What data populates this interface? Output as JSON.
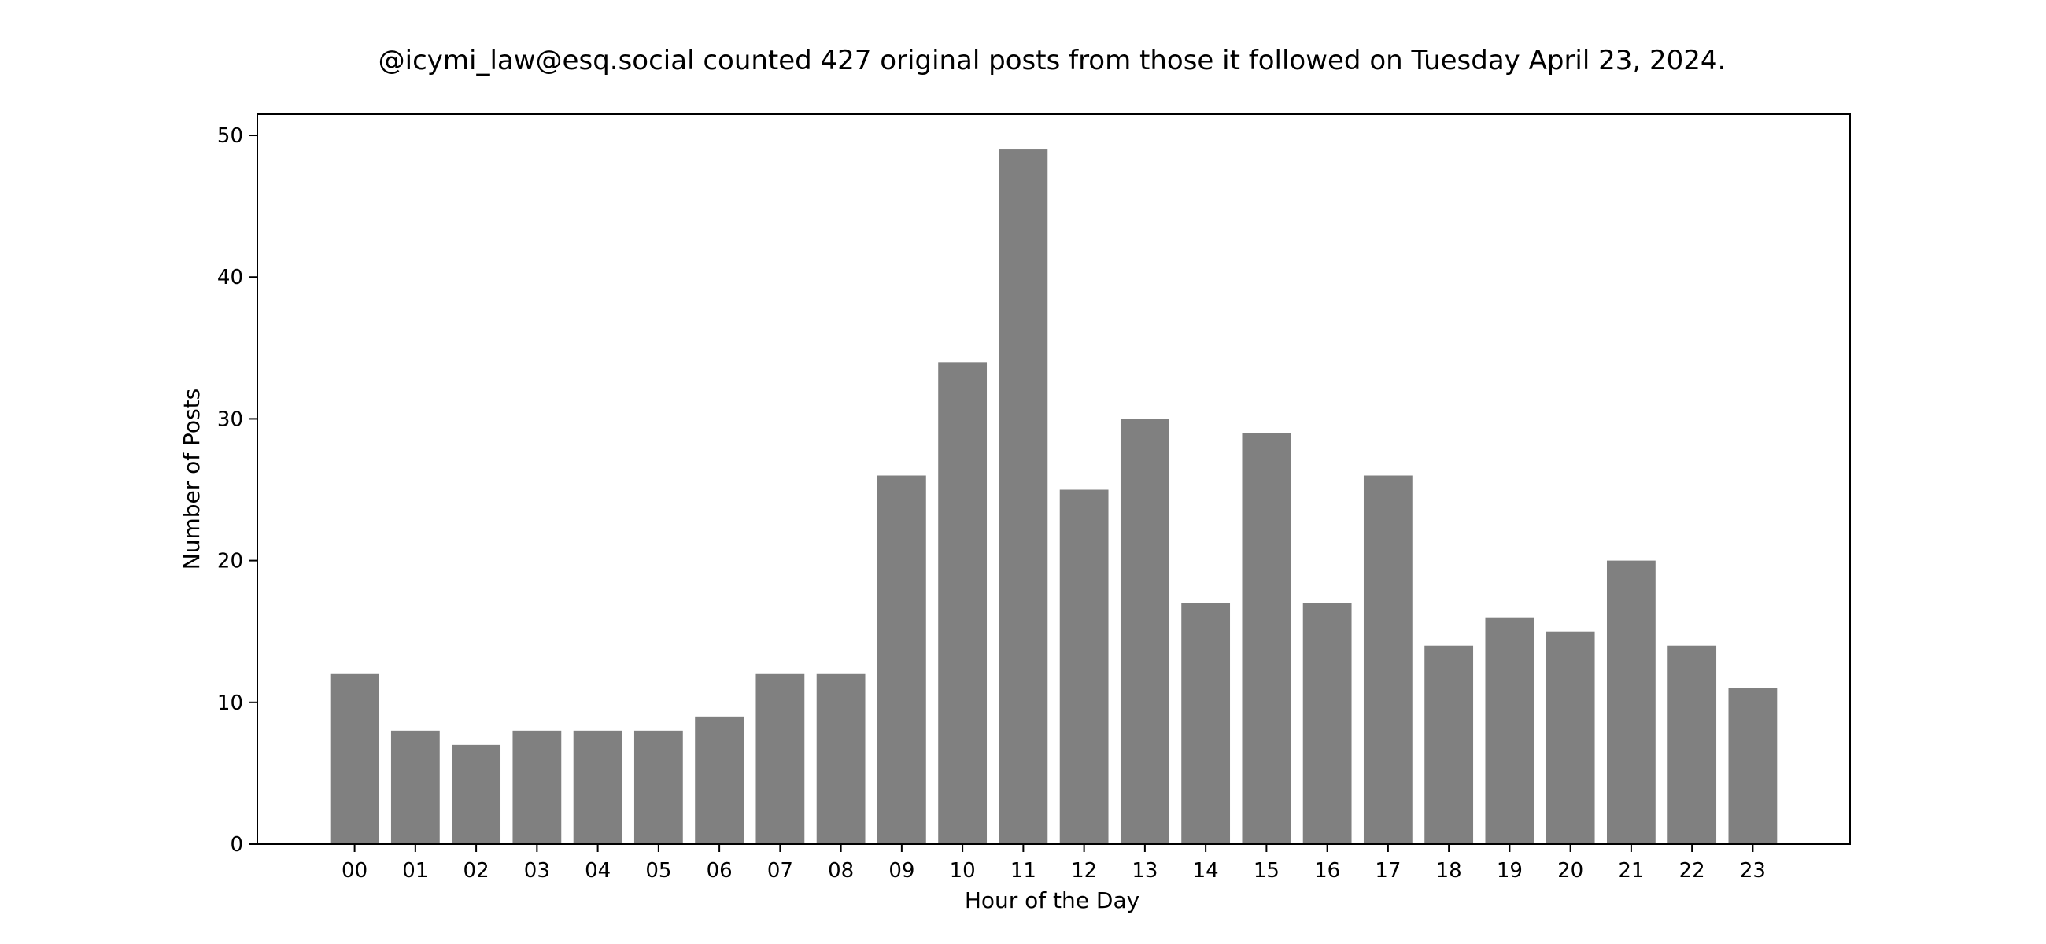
{
  "chart_data": {
    "type": "bar",
    "title": "@icymi_law@esq.social counted 427 original posts from those it followed on Tuesday April 23, 2024.",
    "xlabel": "Hour of the Day",
    "ylabel": "Number of Posts",
    "categories": [
      "00",
      "01",
      "02",
      "03",
      "04",
      "05",
      "06",
      "07",
      "08",
      "09",
      "10",
      "11",
      "12",
      "13",
      "14",
      "15",
      "16",
      "17",
      "18",
      "19",
      "20",
      "21",
      "22",
      "23"
    ],
    "values": [
      12,
      8,
      7,
      8,
      8,
      8,
      9,
      12,
      12,
      26,
      34,
      49,
      25,
      30,
      17,
      29,
      17,
      26,
      14,
      16,
      15,
      20,
      14,
      11
    ],
    "ylim": [
      0,
      51.5
    ],
    "yticks": [
      0,
      10,
      20,
      30,
      40,
      50
    ],
    "grid": false,
    "legend": "none",
    "bar_color": "#808080"
  }
}
